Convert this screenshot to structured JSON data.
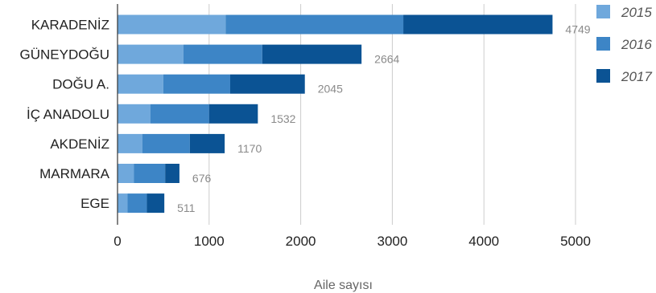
{
  "chart_data": {
    "type": "bar",
    "orientation": "horizontal",
    "stacked": true,
    "categories": [
      "KARADENİZ",
      "GÜNEYDOĞU",
      "DOĞU A.",
      "İÇ ANADOLU",
      "AKDENİZ",
      "MARMARA",
      "EGE"
    ],
    "series": [
      {
        "name": "2015",
        "color": "#6fa8dc",
        "values": [
          1180,
          720,
          500,
          360,
          270,
          180,
          110
        ]
      },
      {
        "name": "2016",
        "color": "#3d85c6",
        "values": [
          1940,
          860,
          730,
          640,
          520,
          340,
          210
        ]
      },
      {
        "name": "2017",
        "color": "#0b5394",
        "values": [
          1629,
          1084,
          815,
          532,
          380,
          156,
          191
        ]
      }
    ],
    "totals": [
      "4749",
      "2664",
      "2045",
      "1532",
      "1170",
      "676",
      "511"
    ],
    "xlabel": "Aile sayısı",
    "xlim": [
      0,
      5000
    ],
    "xticks": [
      "0",
      "1000",
      "2000",
      "3000",
      "4000",
      "5000"
    ],
    "xtick_values": [
      0,
      1000,
      2000,
      3000,
      4000,
      5000
    ],
    "grid": "vertical",
    "legend_position": "right"
  }
}
